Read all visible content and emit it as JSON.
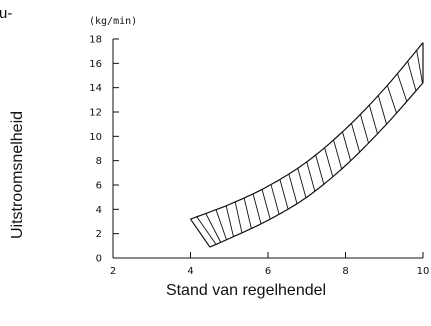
{
  "header_fragment": "u-",
  "chart_data": {
    "type": "area",
    "title": "",
    "xlabel": "Stand van regelhendel",
    "ylabel": "Uitstroomsnelheid",
    "y_unit": "(kg/min)",
    "xlim": [
      2,
      10
    ],
    "ylim": [
      0,
      18
    ],
    "x_ticks": [
      2,
      4,
      6,
      8,
      10
    ],
    "y_ticks": [
      0,
      2,
      4,
      6,
      8,
      10,
      12,
      14,
      16,
      18
    ],
    "grid": false,
    "band": {
      "upper": [
        {
          "x": 4.0,
          "y": 3.2
        },
        {
          "x": 5.0,
          "y": 4.4
        },
        {
          "x": 6.0,
          "y": 5.9
        },
        {
          "x": 7.0,
          "y": 7.9
        },
        {
          "x": 8.0,
          "y": 10.6
        },
        {
          "x": 9.0,
          "y": 13.9
        },
        {
          "x": 10.0,
          "y": 17.7
        }
      ],
      "lower": [
        {
          "x": 4.5,
          "y": 0.9
        },
        {
          "x": 5.0,
          "y": 1.6
        },
        {
          "x": 6.0,
          "y": 3.1
        },
        {
          "x": 7.0,
          "y": 5.0
        },
        {
          "x": 8.0,
          "y": 7.6
        },
        {
          "x": 9.0,
          "y": 10.8
        },
        {
          "x": 10.0,
          "y": 14.4
        }
      ]
    },
    "fill_pattern": "hatched"
  }
}
